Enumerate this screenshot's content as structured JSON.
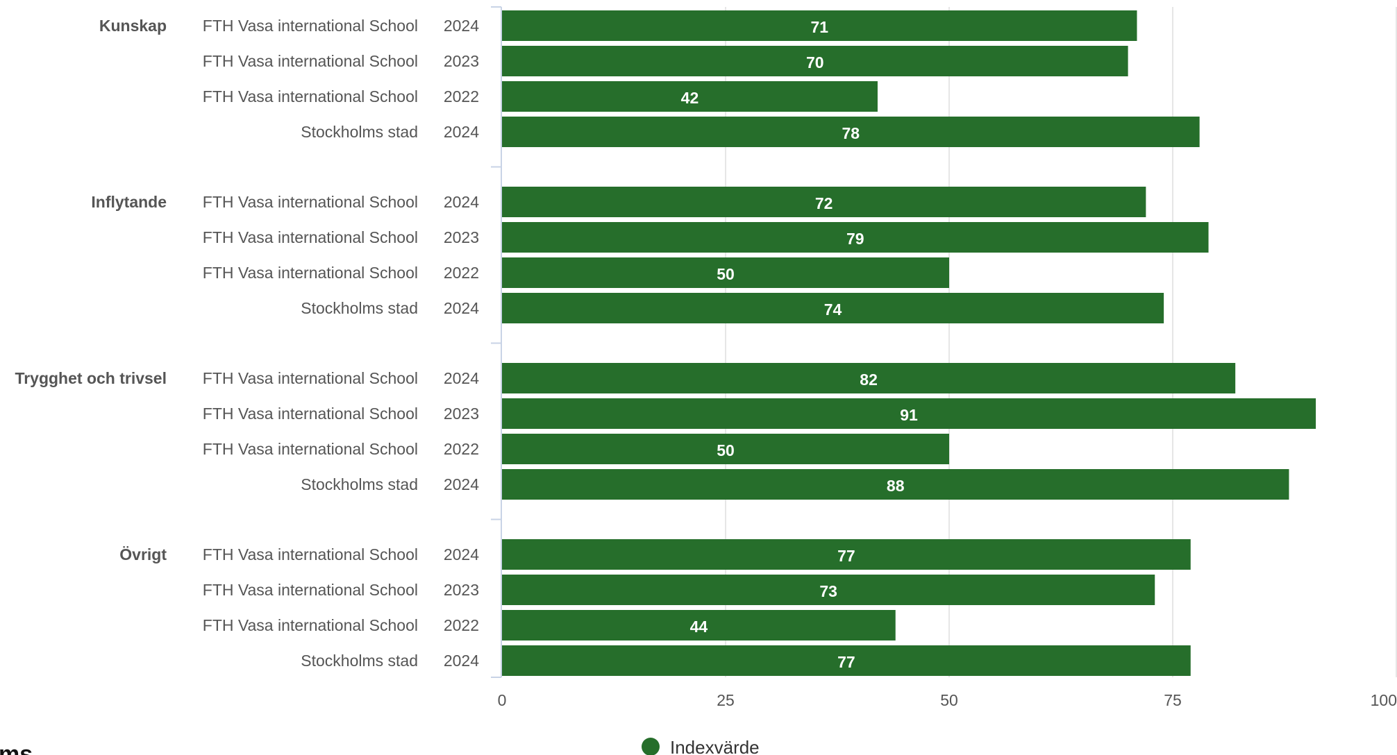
{
  "chart_data": {
    "type": "bar",
    "orientation": "horizontal",
    "xlim": [
      0,
      100
    ],
    "x_ticks": [
      "0",
      "25",
      "50",
      "75",
      "100"
    ],
    "grid": true,
    "bar_color": "#266e2b",
    "legend": {
      "position": "bottom",
      "label": "Indexvärde"
    },
    "groups": [
      {
        "name": "Kunskap",
        "rows": [
          {
            "school": "FTH Vasa international School",
            "year": "2024",
            "value": 71
          },
          {
            "school": "FTH Vasa international School",
            "year": "2023",
            "value": 70
          },
          {
            "school": "FTH Vasa international School",
            "year": "2022",
            "value": 42
          },
          {
            "school": "Stockholms stad",
            "year": "2024",
            "value": 78
          }
        ]
      },
      {
        "name": "Inflytande",
        "rows": [
          {
            "school": "FTH Vasa international School",
            "year": "2024",
            "value": 72
          },
          {
            "school": "FTH Vasa international School",
            "year": "2023",
            "value": 79
          },
          {
            "school": "FTH Vasa international School",
            "year": "2022",
            "value": 50
          },
          {
            "school": "Stockholms stad",
            "year": "2024",
            "value": 74
          }
        ]
      },
      {
        "name": "Trygghet och trivsel",
        "rows": [
          {
            "school": "FTH Vasa international School",
            "year": "2024",
            "value": 82
          },
          {
            "school": "FTH Vasa international School",
            "year": "2023",
            "value": 91
          },
          {
            "school": "FTH Vasa international School",
            "year": "2022",
            "value": 50
          },
          {
            "school": "Stockholms stad",
            "year": "2024",
            "value": 88
          }
        ]
      },
      {
        "name": "Övrigt",
        "rows": [
          {
            "school": "FTH Vasa international School",
            "year": "2024",
            "value": 77
          },
          {
            "school": "FTH Vasa international School",
            "year": "2023",
            "value": 73
          },
          {
            "school": "FTH Vasa international School",
            "year": "2022",
            "value": 44
          },
          {
            "school": "Stockholms stad",
            "year": "2024",
            "value": 77
          }
        ]
      }
    ]
  },
  "page_fragment": {
    "text": "ms"
  }
}
